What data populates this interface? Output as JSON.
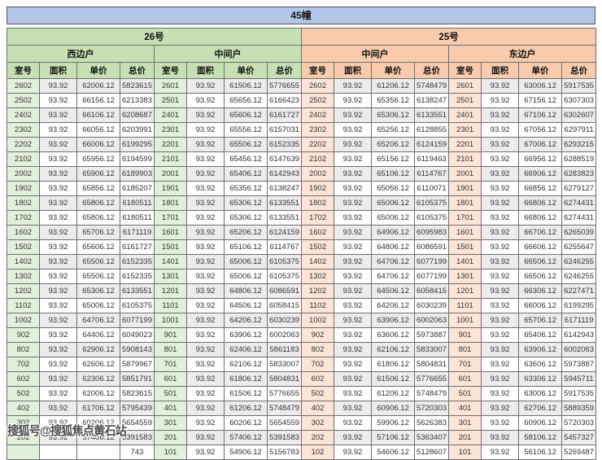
{
  "title": "45幢",
  "watermark": "搜狐号@搜狐焦点黄石站",
  "columns": [
    "室号",
    "面积",
    "单价",
    "总价"
  ],
  "buildings": [
    {
      "name": "26号"
    },
    {
      "name": "25号"
    }
  ],
  "colors": {
    "title_bg": "#b4c6e7",
    "green_band": "#c6e0b4",
    "green_room_cell": "#e2efda",
    "orange_band": "#f8cbad",
    "orange_room_cell": "#fce4d6",
    "stripe_row": "#ececec",
    "grid_border": "#6f6f6f"
  },
  "sections": [
    {
      "building": "26号",
      "unit": "西边户",
      "theme": "green",
      "rows": [
        [
          "2602",
          "93.92",
          "62006.12",
          "5823615"
        ],
        [
          "2502",
          "93.92",
          "66156.12",
          "6213383"
        ],
        [
          "2402",
          "93.92",
          "66106.12",
          "6208687"
        ],
        [
          "2302",
          "93.92",
          "66056.12",
          "6203991"
        ],
        [
          "2202",
          "93.92",
          "66006.12",
          "6199295"
        ],
        [
          "2102",
          "93.92",
          "65956.12",
          "6194599"
        ],
        [
          "2002",
          "93.92",
          "65906.12",
          "6189903"
        ],
        [
          "1902",
          "93.92",
          "65856.12",
          "6185207"
        ],
        [
          "1802",
          "93.92",
          "65806.12",
          "6180511"
        ],
        [
          "1702",
          "93.92",
          "65806.12",
          "6180511"
        ],
        [
          "1602",
          "93.92",
          "65706.12",
          "6171119"
        ],
        [
          "1502",
          "93.92",
          "65606.12",
          "6161727"
        ],
        [
          "1402",
          "93.92",
          "65506.12",
          "6152335"
        ],
        [
          "1302",
          "93.92",
          "65506.12",
          "6152335"
        ],
        [
          "1202",
          "93.92",
          "65306.12",
          "6133551"
        ],
        [
          "1102",
          "93.92",
          "65006.12",
          "6105375"
        ],
        [
          "1002",
          "93.92",
          "64706.12",
          "6077199"
        ],
        [
          "902",
          "93.92",
          "64406.12",
          "6049023"
        ],
        [
          "802",
          "93.92",
          "62906.12",
          "5908143"
        ],
        [
          "702",
          "93.92",
          "62606.12",
          "5879967"
        ],
        [
          "602",
          "93.92",
          "62306.12",
          "5851791"
        ],
        [
          "502",
          "93.92",
          "62006.12",
          "5823615"
        ],
        [
          "402",
          "93.92",
          "61706.12",
          "5795439"
        ],
        [
          "302",
          "93.92",
          "60206.12",
          "5654559"
        ],
        [
          "202",
          "93.92",
          "57406.12",
          "5391583"
        ],
        [
          "",
          "",
          "",
          "743"
        ]
      ]
    },
    {
      "building": "26号",
      "unit": "中间户",
      "theme": "green",
      "rows": [
        [
          "2601",
          "93.92",
          "61506.12",
          "5776655"
        ],
        [
          "2501",
          "93.92",
          "65656.12",
          "6166423"
        ],
        [
          "2401",
          "93.92",
          "65606.12",
          "6161727"
        ],
        [
          "2301",
          "93.92",
          "65556.12",
          "6157031"
        ],
        [
          "2201",
          "93.92",
          "65506.12",
          "6152335"
        ],
        [
          "2101",
          "93.92",
          "65456.12",
          "6147639"
        ],
        [
          "2001",
          "93.92",
          "65406.12",
          "6142943"
        ],
        [
          "1901",
          "93.92",
          "65356.12",
          "6138247"
        ],
        [
          "1801",
          "93.92",
          "65306.12",
          "6133551"
        ],
        [
          "1701",
          "93.92",
          "65306.12",
          "6133551"
        ],
        [
          "1601",
          "93.92",
          "65206.12",
          "6124159"
        ],
        [
          "1501",
          "93.92",
          "65106.12",
          "6114767"
        ],
        [
          "1401",
          "93.92",
          "65006.12",
          "6105375"
        ],
        [
          "1301",
          "93.92",
          "65006.12",
          "6105375"
        ],
        [
          "1201",
          "93.92",
          "64806.12",
          "6086591"
        ],
        [
          "1101",
          "93.92",
          "64506.12",
          "6058415"
        ],
        [
          "1001",
          "93.92",
          "64206.12",
          "6030239"
        ],
        [
          "901",
          "93.92",
          "63906.12",
          "6002063"
        ],
        [
          "801",
          "93.92",
          "62406.12",
          "5861183"
        ],
        [
          "701",
          "93.92",
          "62106.12",
          "5833007"
        ],
        [
          "601",
          "93.92",
          "61806.12",
          "5804831"
        ],
        [
          "501",
          "93.92",
          "61506.12",
          "5776655"
        ],
        [
          "401",
          "93.92",
          "61206.12",
          "5748479"
        ],
        [
          "301",
          "93.92",
          "60206.12",
          "5654559"
        ],
        [
          "201",
          "93.92",
          "57406.12",
          "5391583"
        ],
        [
          "101",
          "93.92",
          "54906.12",
          "5156783"
        ]
      ]
    },
    {
      "building": "25号",
      "unit": "中间户",
      "theme": "orange",
      "rows": [
        [
          "2602",
          "93.92",
          "61206.12",
          "5748479"
        ],
        [
          "2502",
          "93.92",
          "65356.12",
          "6138247"
        ],
        [
          "2402",
          "93.92",
          "65306.12",
          "6133551"
        ],
        [
          "2302",
          "93.92",
          "65256.12",
          "6128855"
        ],
        [
          "2202",
          "93.92",
          "65206.12",
          "6124159"
        ],
        [
          "2102",
          "93.92",
          "65156.12",
          "6119463"
        ],
        [
          "2002",
          "93.92",
          "65106.12",
          "6114767"
        ],
        [
          "1902",
          "93.92",
          "65056.12",
          "6110071"
        ],
        [
          "1802",
          "93.92",
          "65006.12",
          "6105375"
        ],
        [
          "1702",
          "93.92",
          "65006.12",
          "6105375"
        ],
        [
          "1602",
          "93.92",
          "64906.12",
          "6095983"
        ],
        [
          "1502",
          "93.92",
          "64806.12",
          "6086591"
        ],
        [
          "1402",
          "93.92",
          "64706.12",
          "6077199"
        ],
        [
          "1302",
          "93.92",
          "64706.12",
          "6077199"
        ],
        [
          "1202",
          "93.92",
          "64506.12",
          "6058415"
        ],
        [
          "1102",
          "93.92",
          "64206.12",
          "6030239"
        ],
        [
          "1002",
          "93.92",
          "63906.12",
          "6002063"
        ],
        [
          "902",
          "93.92",
          "63606.12",
          "5973887"
        ],
        [
          "802",
          "93.92",
          "62106.12",
          "5833007"
        ],
        [
          "702",
          "93.92",
          "61806.12",
          "5804831"
        ],
        [
          "602",
          "93.92",
          "61506.12",
          "5776655"
        ],
        [
          "502",
          "93.92",
          "61206.12",
          "5748479"
        ],
        [
          "402",
          "93.92",
          "60906.12",
          "5720303"
        ],
        [
          "302",
          "93.92",
          "59906.12",
          "5626383"
        ],
        [
          "202",
          "93.92",
          "57106.12",
          "5363407"
        ],
        [
          "102",
          "93.92",
          "54606.12",
          "5128607"
        ]
      ]
    },
    {
      "building": "25号",
      "unit": "东边户",
      "theme": "orange",
      "rows": [
        [
          "2601",
          "93.92",
          "63006.12",
          "5917535"
        ],
        [
          "2501",
          "93.92",
          "67156.12",
          "6307303"
        ],
        [
          "2401",
          "93.92",
          "67106.12",
          "6302607"
        ],
        [
          "2301",
          "93.92",
          "67056.12",
          "6297911"
        ],
        [
          "2201",
          "93.92",
          "67006.12",
          "6293215"
        ],
        [
          "2101",
          "93.92",
          "66956.12",
          "6288519"
        ],
        [
          "2001",
          "93.92",
          "66906.12",
          "6283823"
        ],
        [
          "1901",
          "93.92",
          "66856.12",
          "6279127"
        ],
        [
          "1801",
          "93.92",
          "66806.12",
          "6274431"
        ],
        [
          "1701",
          "93.92",
          "66806.12",
          "6274431"
        ],
        [
          "1601",
          "93.92",
          "66706.12",
          "6265039"
        ],
        [
          "1501",
          "93.92",
          "66606.12",
          "6255647"
        ],
        [
          "1401",
          "93.92",
          "66506.12",
          "6246255"
        ],
        [
          "1301",
          "93.92",
          "66506.12",
          "6246255"
        ],
        [
          "1201",
          "93.92",
          "66306.12",
          "6227471"
        ],
        [
          "1101",
          "93.92",
          "66006.12",
          "6199295"
        ],
        [
          "1001",
          "93.92",
          "65706.12",
          "6171119"
        ],
        [
          "901",
          "93.92",
          "65406.12",
          "6142943"
        ],
        [
          "801",
          "93.92",
          "63906.12",
          "6002063"
        ],
        [
          "701",
          "93.92",
          "63606.12",
          "5973887"
        ],
        [
          "601",
          "93.92",
          "63306.12",
          "5945711"
        ],
        [
          "501",
          "93.92",
          "63006.12",
          "5917535"
        ],
        [
          "401",
          "93.92",
          "62706.12",
          "5889359"
        ],
        [
          "301",
          "93.92",
          "60906.12",
          "5720303"
        ],
        [
          "201",
          "93.92",
          "58106.12",
          "5457327"
        ],
        [
          "101",
          "93.92",
          "56106.12",
          "5269487"
        ]
      ]
    }
  ]
}
